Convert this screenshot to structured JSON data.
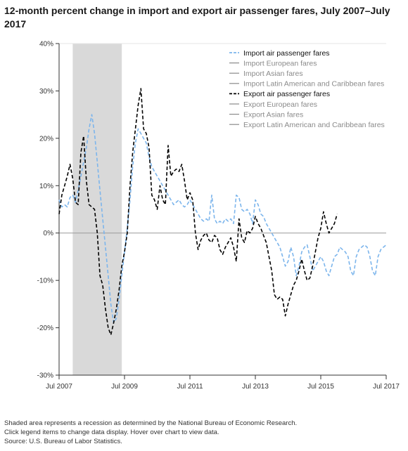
{
  "title": "12-month percent change in import and export air passenger fares, July 2007–July 2017",
  "footnotes": {
    "line1": "Shaded area represents a recession as determined by the National Bureau of Economic Research.",
    "line2": "Click legend items to change data display. Hover over chart to view data.",
    "line3": "Source: U.S. Bureau of Labor Statistics."
  },
  "chart_data": {
    "type": "line",
    "title": "12-month percent change in import and export air passenger fares, July 2007–July 2017",
    "xlabel": "",
    "ylabel": "",
    "x_range": [
      "2007-07",
      "2017-07"
    ],
    "ylim": [
      -30,
      40
    ],
    "y_ticks": [
      40,
      30,
      20,
      10,
      0,
      -10,
      -20,
      -30
    ],
    "y_tick_labels": [
      "40%",
      "30%",
      "20%",
      "10%",
      "0%",
      "-10%",
      "-20%",
      "-30%"
    ],
    "x_ticks": [
      "2007-07",
      "2009-07",
      "2011-07",
      "2013-07",
      "2015-07",
      "2017-07"
    ],
    "x_tick_labels": [
      "Jul 2007",
      "Jul 2009",
      "Jul 2011",
      "Jul 2013",
      "Jul 2015",
      "Jul 2017"
    ],
    "recession": {
      "start": "2007-12",
      "end": "2009-06"
    },
    "legend_position": "top-right",
    "legend": [
      {
        "name": "Import air passenger fares",
        "color": "#7cb5ec",
        "style": "dashed",
        "active": true
      },
      {
        "name": "Import European fares",
        "color": "#8a8a8a",
        "style": "solid",
        "active": false
      },
      {
        "name": "Import Asian fares",
        "color": "#8a8a8a",
        "style": "solid",
        "active": false
      },
      {
        "name": "Import Latin American and Caribbean fares",
        "color": "#8a8a8a",
        "style": "solid",
        "active": false
      },
      {
        "name": "Export air passenger fares",
        "color": "#000000",
        "style": "dashed",
        "active": true
      },
      {
        "name": "Export European fares",
        "color": "#8a8a8a",
        "style": "solid",
        "active": false
      },
      {
        "name": "Export Asian fares",
        "color": "#8a8a8a",
        "style": "solid",
        "active": false
      },
      {
        "name": "Export Latin American and Caribbean fares",
        "color": "#8a8a8a",
        "style": "solid",
        "active": false
      }
    ],
    "series": [
      {
        "name": "Import air passenger fares",
        "color": "#7cb5ec",
        "start": "2007-07",
        "values": [
          7,
          5.5,
          6,
          5.5,
          7.5,
          8,
          6.5,
          9,
          12,
          15,
          18,
          22,
          25,
          21,
          15,
          9,
          3,
          -3,
          -9,
          -15,
          -19,
          -18,
          -14,
          -9,
          -4,
          1,
          7,
          14,
          19,
          22,
          21,
          20,
          19,
          16,
          14,
          13,
          12,
          11,
          10,
          9,
          8,
          7,
          6,
          6.5,
          7,
          6,
          5.5,
          6,
          7,
          6,
          5,
          4,
          3,
          2.5,
          3,
          2.5,
          8,
          3,
          2,
          2.5,
          2,
          3,
          2.5,
          3,
          2,
          8,
          7.5,
          5,
          4.5,
          5,
          4,
          2,
          7,
          6,
          4,
          3.5,
          2,
          1,
          0,
          -1,
          -2,
          -3,
          -5,
          -7,
          -6,
          -3,
          -5,
          -9,
          -7,
          -4,
          -3,
          -2.5,
          -5,
          -8,
          -7,
          -6,
          -5,
          -6,
          -8,
          -9,
          -7,
          -5,
          -4.5,
          -3,
          -3.5,
          -4,
          -5,
          -8,
          -9,
          -5,
          -3.5,
          -3,
          -2.5,
          -3,
          -5,
          -8,
          -9,
          -5,
          -3.5,
          -3,
          -2.5
        ]
      },
      {
        "name": "Export air passenger fares",
        "color": "#000000",
        "start": "2007-07",
        "values": [
          4,
          8,
          10,
          12,
          14.5,
          11.5,
          6.5,
          6,
          17,
          20.5,
          11,
          6,
          5.5,
          5,
          0,
          -9,
          -11,
          -16,
          -20,
          -21.5,
          -19,
          -16,
          -12,
          -7,
          -4,
          0,
          10,
          17,
          22,
          27,
          30.5,
          22,
          21,
          18,
          8,
          7,
          5,
          10,
          7,
          6,
          18.5,
          12,
          13,
          13.5,
          13,
          14.5,
          11,
          7,
          8.5,
          7,
          0,
          -3.5,
          -1.5,
          -0.5,
          0,
          -1.5,
          -2,
          -0.5,
          -1,
          -3.5,
          -4.5,
          -3,
          -2,
          -1,
          -3,
          -6,
          3,
          -1,
          -2,
          0.5,
          0,
          1,
          3.5,
          2,
          1,
          -0.5,
          -2,
          -5,
          -8,
          -13,
          -14,
          -13.5,
          -14,
          -17.5,
          -15,
          -13,
          -11,
          -10,
          -8,
          -5.5,
          -8,
          -10,
          -9.5,
          -7,
          -4,
          -1,
          1,
          4.5,
          2,
          0,
          1,
          2,
          4
        ]
      }
    ]
  }
}
